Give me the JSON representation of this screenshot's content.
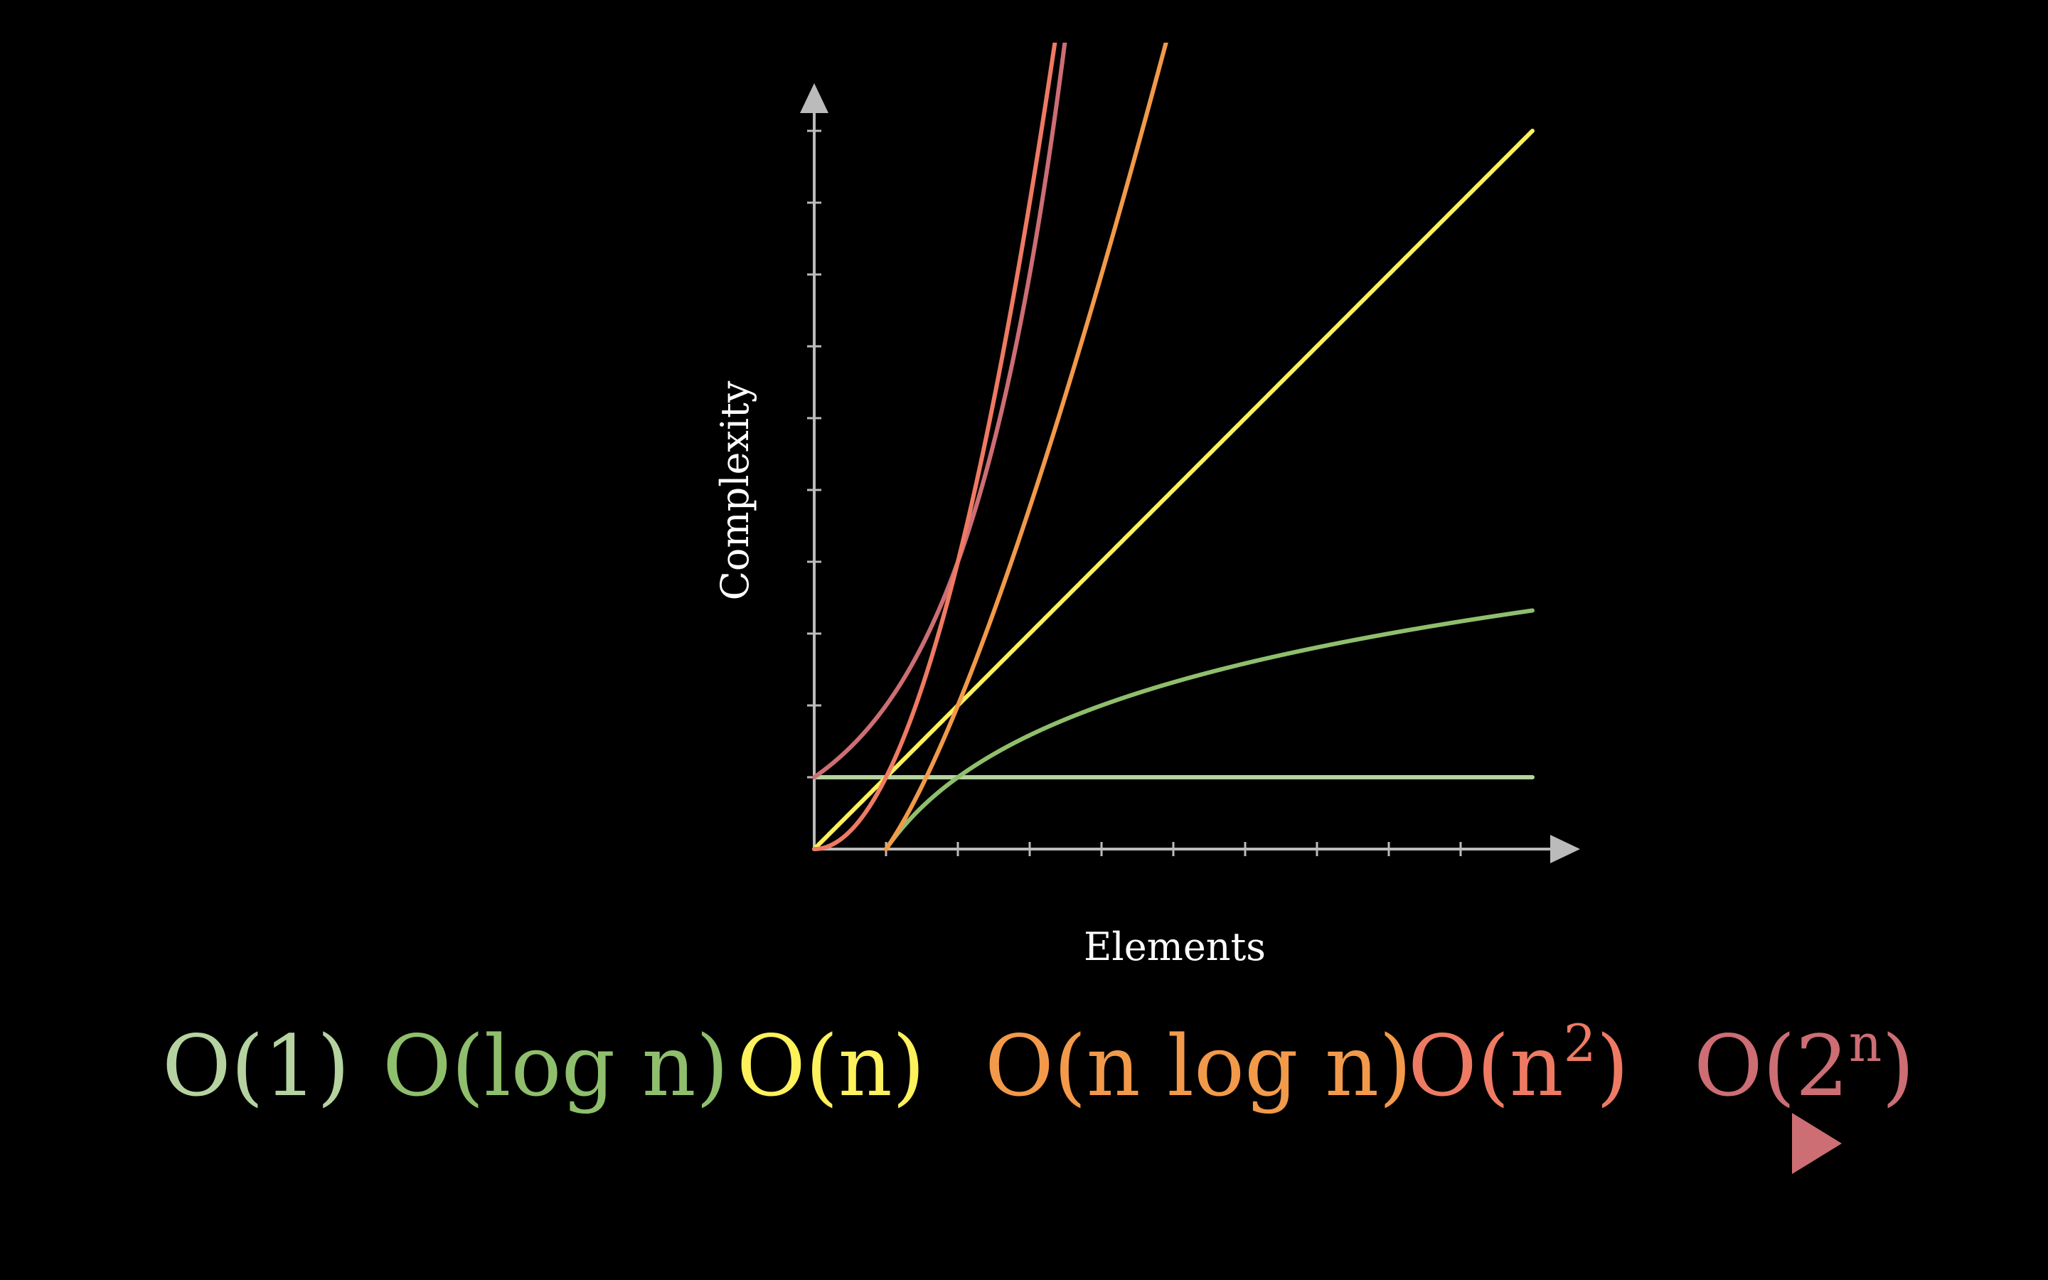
{
  "chart_data": {
    "type": "line",
    "xlabel": "Elements",
    "ylabel": "Complexity",
    "xlim": [
      0,
      10
    ],
    "ylim": [
      0,
      10
    ],
    "grid": false,
    "axis_color": "#bbbbbb",
    "series": [
      {
        "name": "O(1)",
        "function": "constant",
        "color": "#b5d3a0"
      },
      {
        "name": "O(log n)",
        "function": "log",
        "color": "#8fbf6c"
      },
      {
        "name": "O(n)",
        "function": "linear",
        "color": "#fdf15c"
      },
      {
        "name": "O(n log n)",
        "function": "nlogn",
        "color": "#f29a4a"
      },
      {
        "name": "O(n^2)",
        "function": "quadratic",
        "color": "#ef7a63"
      },
      {
        "name": "O(2^n)",
        "function": "exponential",
        "color": "#cc6e74"
      }
    ],
    "legend": {
      "placement": "bottom",
      "items": [
        {
          "prefix": "O(",
          "main": "1",
          "sup": "",
          "suffix": ")",
          "color": "#b5d3a0"
        },
        {
          "prefix": "O(",
          "main": "log n",
          "sup": "",
          "suffix": ")",
          "color": "#8fbf6c"
        },
        {
          "prefix": "O(",
          "main": "n",
          "sup": "",
          "suffix": ")",
          "color": "#fdf15c"
        },
        {
          "prefix": "O(",
          "main": "n log n",
          "sup": "",
          "suffix": ")",
          "color": "#f29a4a"
        },
        {
          "prefix": "O(",
          "main": "n",
          "sup": "2",
          "suffix": ")",
          "color": "#ef7a63"
        },
        {
          "prefix": "O(",
          "main": "2",
          "sup": "n",
          "suffix": ")",
          "color": "#cc6e74"
        }
      ]
    },
    "gradient_arrow": {
      "colors": [
        "#8fbf6c",
        "#8fbf6c",
        "#ef7a63",
        "#f29a4a",
        "#ef7a63",
        "#cc6e74"
      ]
    }
  }
}
